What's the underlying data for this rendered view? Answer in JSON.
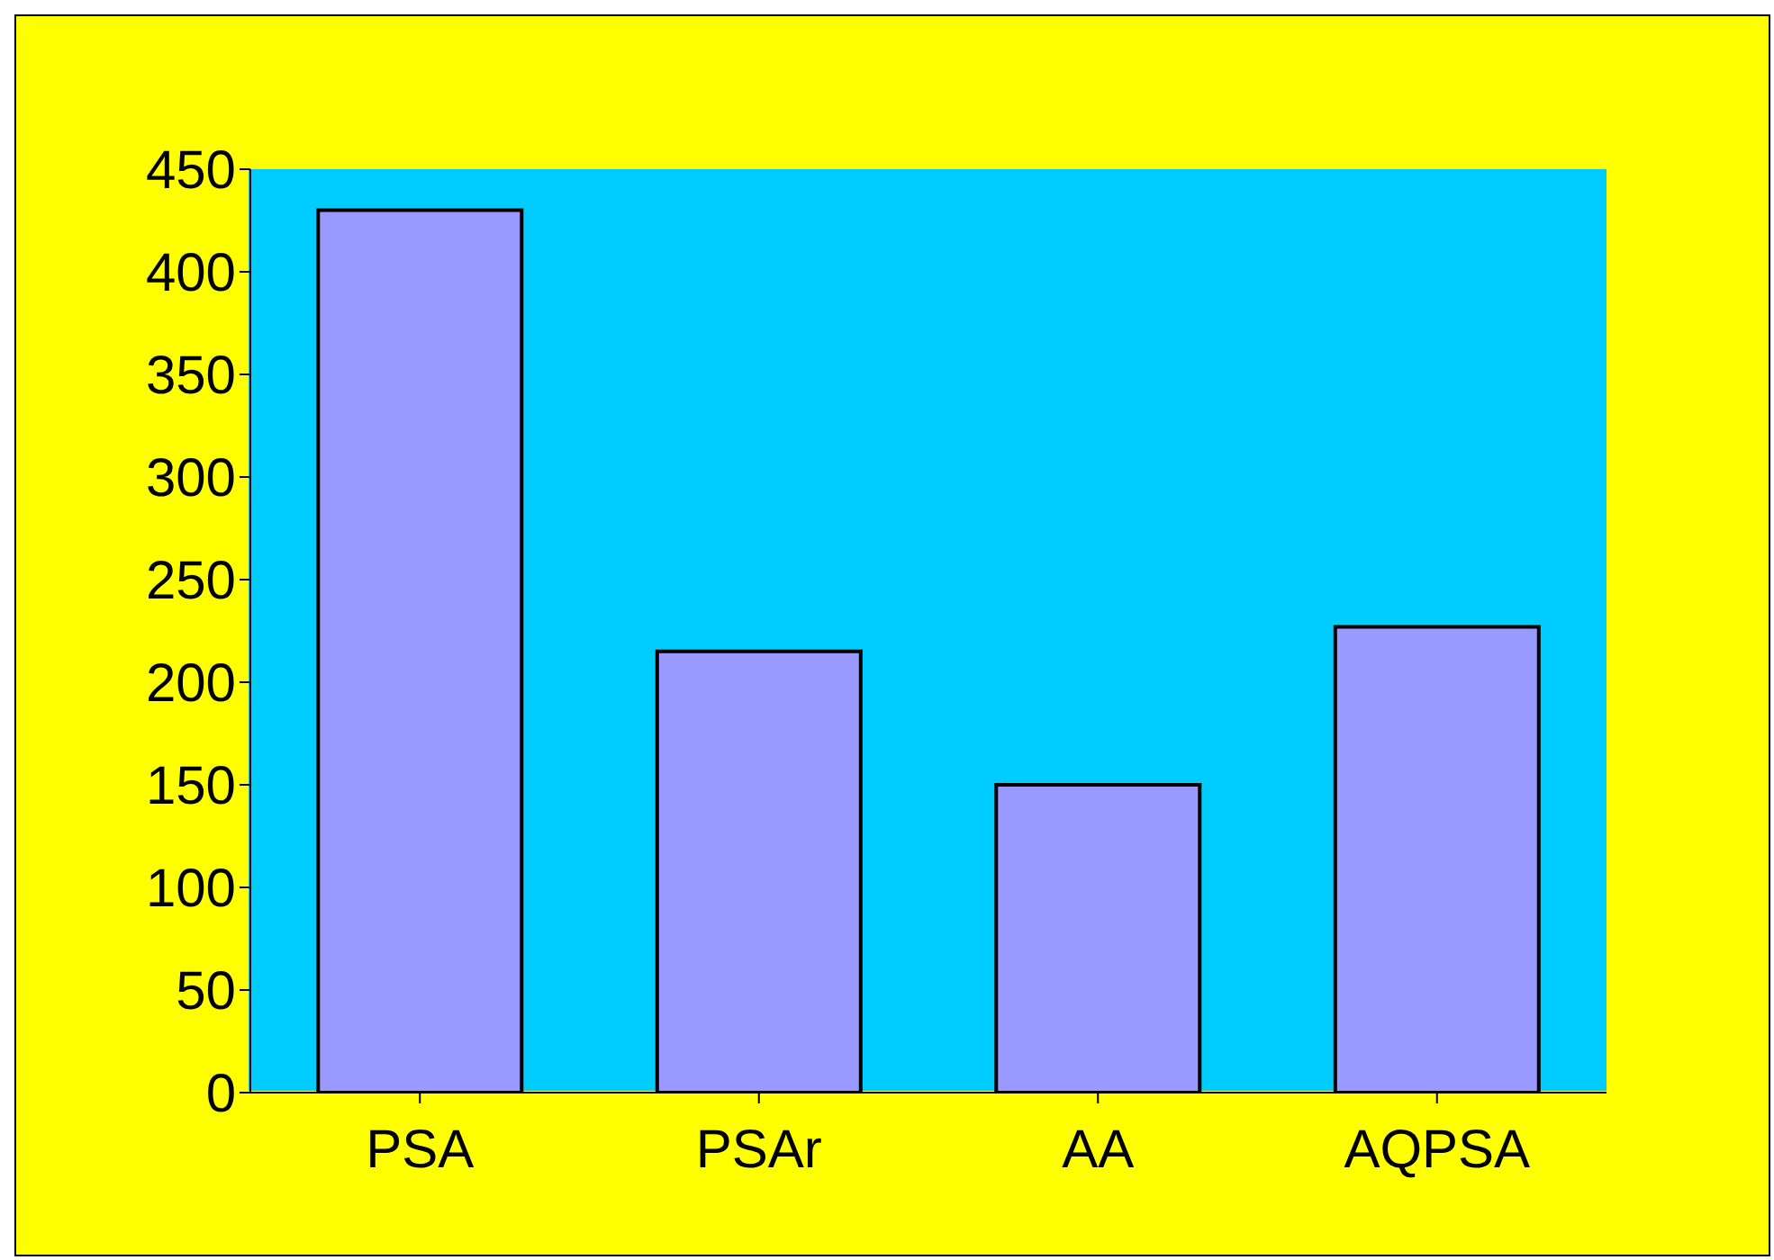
{
  "chart_data": {
    "type": "bar",
    "categories": [
      "PSA",
      "PSAr",
      "AA",
      "AQPSA"
    ],
    "values": [
      430,
      215,
      150,
      227
    ],
    "color": "#9999ff",
    "ylim": [
      0,
      450
    ],
    "yticks": [
      0,
      50,
      100,
      150,
      200,
      250,
      300,
      350,
      400,
      450
    ]
  }
}
